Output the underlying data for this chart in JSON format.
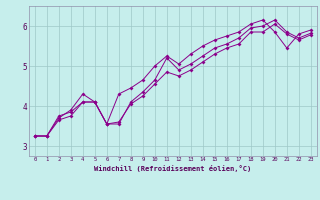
{
  "xlabel": "Windchill (Refroidissement éolien,°C)",
  "background_color": "#c6eeec",
  "line_color": "#8b008b",
  "grid_color": "#9ec8c8",
  "xlim": [
    -0.5,
    23.5
  ],
  "ylim": [
    2.75,
    6.5
  ],
  "xticks": [
    0,
    1,
    2,
    3,
    4,
    5,
    6,
    7,
    8,
    9,
    10,
    11,
    12,
    13,
    14,
    15,
    16,
    17,
    18,
    19,
    20,
    21,
    22,
    23
  ],
  "yticks": [
    3,
    4,
    5,
    6
  ],
  "series1_x": [
    0,
    1,
    2,
    3,
    4,
    5,
    6,
    7,
    8,
    9,
    10,
    11,
    12,
    13,
    14,
    15,
    16,
    17,
    18,
    19,
    20,
    21,
    22,
    23
  ],
  "series1_y": [
    3.25,
    3.25,
    3.7,
    3.9,
    4.3,
    4.1,
    3.55,
    4.3,
    4.45,
    4.65,
    5.0,
    5.25,
    5.05,
    5.3,
    5.5,
    5.65,
    5.75,
    5.85,
    6.05,
    6.15,
    5.85,
    5.45,
    5.8,
    5.9
  ],
  "series2_x": [
    0,
    1,
    2,
    3,
    4,
    5,
    6,
    7,
    8,
    9,
    10,
    11,
    12,
    13,
    14,
    15,
    16,
    17,
    18,
    19,
    20,
    21,
    22,
    23
  ],
  "series2_y": [
    3.25,
    3.25,
    3.75,
    3.85,
    4.1,
    4.1,
    3.55,
    3.55,
    4.1,
    4.35,
    4.65,
    5.2,
    4.9,
    5.05,
    5.25,
    5.45,
    5.55,
    5.7,
    5.95,
    6.0,
    6.15,
    5.85,
    5.7,
    5.82
  ],
  "series3_x": [
    0,
    1,
    2,
    3,
    4,
    5,
    6,
    7,
    8,
    9,
    10,
    11,
    12,
    13,
    14,
    15,
    16,
    17,
    18,
    19,
    20,
    21,
    22,
    23
  ],
  "series3_y": [
    3.25,
    3.25,
    3.65,
    3.75,
    4.1,
    4.1,
    3.55,
    3.6,
    4.05,
    4.25,
    4.55,
    4.85,
    4.75,
    4.9,
    5.1,
    5.3,
    5.45,
    5.55,
    5.85,
    5.85,
    6.05,
    5.8,
    5.65,
    5.78
  ]
}
